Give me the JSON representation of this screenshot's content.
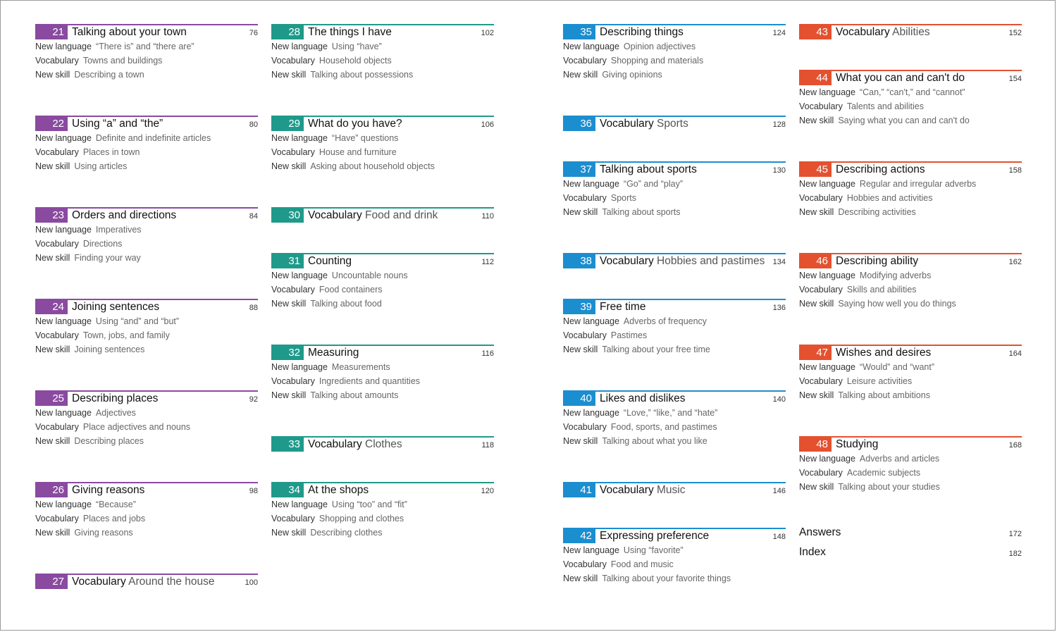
{
  "colors": {
    "purple": "#8a4aa0",
    "teal": "#1f9a8a",
    "blue": "#1b8ed0",
    "red": "#e4512f"
  },
  "columns": [
    {
      "entries": [
        {
          "num": "21",
          "title": "Talking about your town",
          "page": "76",
          "lines": [
            {
              "label": "New language",
              "text": "“There is” and “there are”"
            },
            {
              "label": "Vocabulary",
              "text": "Towns and buildings"
            },
            {
              "label": "New skill",
              "text": "Describing a town"
            }
          ]
        },
        {
          "num": "22",
          "title": "Using “a” and “the”",
          "page": "80",
          "lines": [
            {
              "label": "New language",
              "text": "Definite and indefinite articles"
            },
            {
              "label": "Vocabulary",
              "text": "Places in town"
            },
            {
              "label": "New skill",
              "text": "Using articles"
            }
          ]
        },
        {
          "num": "23",
          "title": "Orders and directions",
          "page": "84",
          "lines": [
            {
              "label": "New language",
              "text": "Imperatives"
            },
            {
              "label": "Vocabulary",
              "text": "Directions"
            },
            {
              "label": "New skill",
              "text": "Finding your way"
            }
          ]
        },
        {
          "num": "24",
          "title": "Joining sentences",
          "page": "88",
          "lines": [
            {
              "label": "New language",
              "text": "Using “and” and “but”"
            },
            {
              "label": "Vocabulary",
              "text": "Town, jobs, and family"
            },
            {
              "label": "New skill",
              "text": "Joining sentences"
            }
          ]
        },
        {
          "num": "25",
          "title": "Describing places",
          "page": "92",
          "lines": [
            {
              "label": "New language",
              "text": "Adjectives"
            },
            {
              "label": "Vocabulary",
              "text": "Place adjectives and nouns"
            },
            {
              "label": "New skill",
              "text": "Describing places"
            }
          ]
        },
        {
          "num": "26",
          "title": "Giving reasons",
          "page": "98",
          "lines": [
            {
              "label": "New language",
              "text": "“Because”"
            },
            {
              "label": "Vocabulary",
              "text": "Places and jobs"
            },
            {
              "label": "New skill",
              "text": "Giving reasons"
            }
          ]
        },
        {
          "num": "27",
          "title": "Vocabulary",
          "subtitle": "Around the house",
          "page": "100",
          "lines": []
        }
      ]
    },
    {
      "entries": [
        {
          "num": "28",
          "title": "The things I have",
          "page": "102",
          "lines": [
            {
              "label": "New language",
              "text": "Using “have”"
            },
            {
              "label": "Vocabulary",
              "text": "Household objects"
            },
            {
              "label": "New skill",
              "text": "Talking about possessions"
            }
          ]
        },
        {
          "num": "29",
          "title": "What do you have?",
          "page": "106",
          "lines": [
            {
              "label": "New language",
              "text": "“Have” questions"
            },
            {
              "label": "Vocabulary",
              "text": "House and furniture"
            },
            {
              "label": "New skill",
              "text": "Asking about household objects"
            }
          ]
        },
        {
          "num": "30",
          "title": "Vocabulary",
          "subtitle": "Food and drink",
          "page": "110",
          "lines": []
        },
        {
          "num": "31",
          "title": "Counting",
          "page": "112",
          "lines": [
            {
              "label": "New language",
              "text": "Uncountable nouns"
            },
            {
              "label": "Vocabulary",
              "text": "Food containers"
            },
            {
              "label": "New skill",
              "text": "Talking about food"
            }
          ]
        },
        {
          "num": "32",
          "title": "Measuring",
          "page": "116",
          "lines": [
            {
              "label": "New language",
              "text": "Measurements"
            },
            {
              "label": "Vocabulary",
              "text": "Ingredients and quantities"
            },
            {
              "label": "New skill",
              "text": "Talking about amounts"
            }
          ]
        },
        {
          "num": "33",
          "title": "Vocabulary",
          "subtitle": "Clothes",
          "page": "118",
          "lines": []
        },
        {
          "num": "34",
          "title": "At the shops",
          "page": "120",
          "lines": [
            {
              "label": "New language",
              "text": "Using “too” and “fit”"
            },
            {
              "label": "Vocabulary",
              "text": "Shopping and clothes"
            },
            {
              "label": "New skill",
              "text": "Describing clothes"
            }
          ]
        }
      ]
    },
    {
      "entries": [
        {
          "num": "35",
          "title": "Describing things",
          "page": "124",
          "lines": [
            {
              "label": "New language",
              "text": "Opinion adjectives"
            },
            {
              "label": "Vocabulary",
              "text": "Shopping and materials"
            },
            {
              "label": "New skill",
              "text": "Giving opinions"
            }
          ]
        },
        {
          "num": "36",
          "title": "Vocabulary",
          "subtitle": "Sports",
          "page": "128",
          "lines": []
        },
        {
          "num": "37",
          "title": "Talking about sports",
          "page": "130",
          "lines": [
            {
              "label": "New language",
              "text": "“Go” and “play”"
            },
            {
              "label": "Vocabulary",
              "text": "Sports"
            },
            {
              "label": "New skill",
              "text": "Talking about sports"
            }
          ]
        },
        {
          "num": "38",
          "title": "Vocabulary",
          "subtitle": "Hobbies and pastimes",
          "page": "134",
          "lines": []
        },
        {
          "num": "39",
          "title": "Free time",
          "page": "136",
          "lines": [
            {
              "label": "New language",
              "text": "Adverbs of frequency"
            },
            {
              "label": "Vocabulary",
              "text": "Pastimes"
            },
            {
              "label": "New skill",
              "text": "Talking about your free time"
            }
          ]
        },
        {
          "num": "40",
          "title": "Likes and dislikes",
          "page": "140",
          "lines": [
            {
              "label": "New language",
              "text": "“Love,” “like,” and “hate”"
            },
            {
              "label": "Vocabulary",
              "text": "Food, sports, and pastimes"
            },
            {
              "label": "New skill",
              "text": "Talking about what you like"
            }
          ]
        },
        {
          "num": "41",
          "title": "Vocabulary",
          "subtitle": "Music",
          "page": "146",
          "lines": []
        },
        {
          "num": "42",
          "title": "Expressing preference",
          "page": "148",
          "lines": [
            {
              "label": "New language",
              "text": "Using “favorite”"
            },
            {
              "label": "Vocabulary",
              "text": "Food and music"
            },
            {
              "label": "New skill",
              "text": "Talking about your favorite things"
            }
          ]
        }
      ]
    },
    {
      "entries": [
        {
          "num": "43",
          "title": "Vocabulary",
          "subtitle": "Abilities",
          "page": "152",
          "lines": []
        },
        {
          "num": "44",
          "title": "What you can and can't do",
          "page": "154",
          "lines": [
            {
              "label": "New language",
              "text": "“Can,” “can't,” and “cannot”"
            },
            {
              "label": "Vocabulary",
              "text": "Talents and abilities"
            },
            {
              "label": "New skill",
              "text": "Saying what you can and can't do"
            }
          ]
        },
        {
          "num": "45",
          "title": "Describing actions",
          "page": "158",
          "lines": [
            {
              "label": "New language",
              "text": "Regular and irregular adverbs"
            },
            {
              "label": "Vocabulary",
              "text": "Hobbies and activities"
            },
            {
              "label": "New skill",
              "text": "Describing activities"
            }
          ]
        },
        {
          "num": "46",
          "title": "Describing ability",
          "page": "162",
          "lines": [
            {
              "label": "New language",
              "text": "Modifying adverbs"
            },
            {
              "label": "Vocabulary",
              "text": "Skills and abilities"
            },
            {
              "label": "New skill",
              "text": "Saying how well you do things"
            }
          ]
        },
        {
          "num": "47",
          "title": "Wishes and desires",
          "page": "164",
          "lines": [
            {
              "label": "New language",
              "text": "“Would” and “want”"
            },
            {
              "label": "Vocabulary",
              "text": "Leisure activities"
            },
            {
              "label": "New skill",
              "text": "Talking about ambitions"
            }
          ]
        },
        {
          "num": "48",
          "title": "Studying",
          "page": "168",
          "lines": [
            {
              "label": "New language",
              "text": "Adverbs and articles"
            },
            {
              "label": "Vocabulary",
              "text": "Academic subjects"
            },
            {
              "label": "New skill",
              "text": "Talking about your studies"
            }
          ]
        }
      ]
    }
  ],
  "back_matter": [
    {
      "title": "Answers",
      "page": "172"
    },
    {
      "title": "Index",
      "page": "182"
    }
  ]
}
